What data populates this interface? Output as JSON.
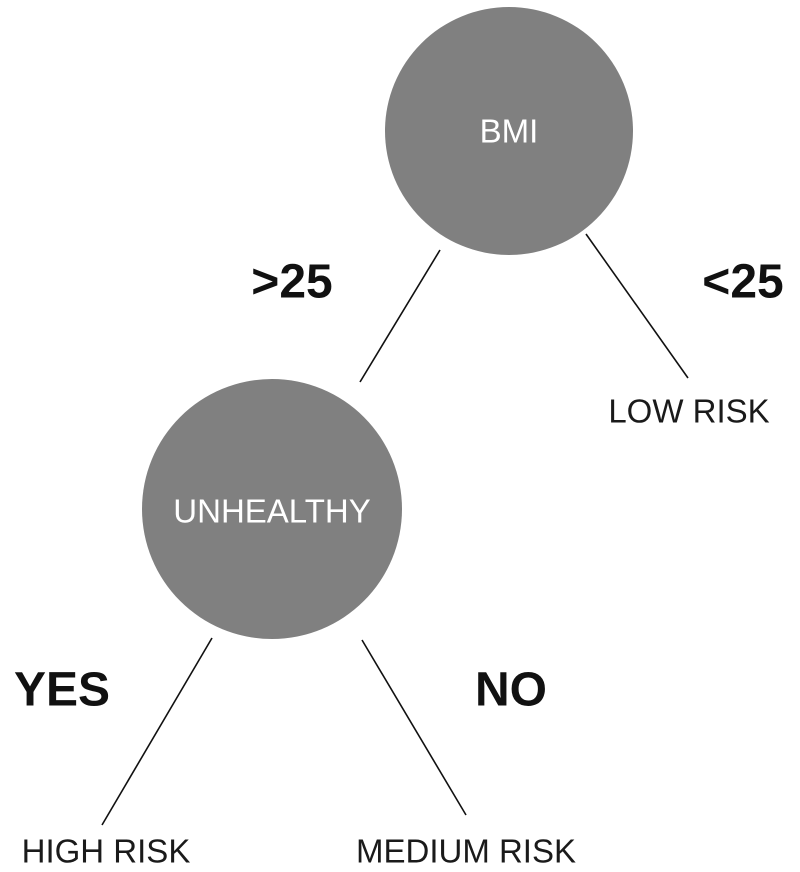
{
  "diagram": {
    "nodes": {
      "root": {
        "label": "BMI",
        "color": "#808080"
      },
      "unhealthy": {
        "label": "UNHEALTHY",
        "color": "#808080"
      }
    },
    "leaves": {
      "low_risk": {
        "label": "LOW RISK"
      },
      "high_risk": {
        "label": "HIGH RISK"
      },
      "medium_risk": {
        "label": "MEDIUM RISK"
      }
    },
    "edges": {
      "root_to_unhealthy": {
        "label": ">25"
      },
      "root_to_low_risk": {
        "label": "<25"
      },
      "unhealthy_to_high_risk": {
        "label": "YES"
      },
      "unhealthy_to_medium_risk": {
        "label": "NO"
      }
    }
  }
}
